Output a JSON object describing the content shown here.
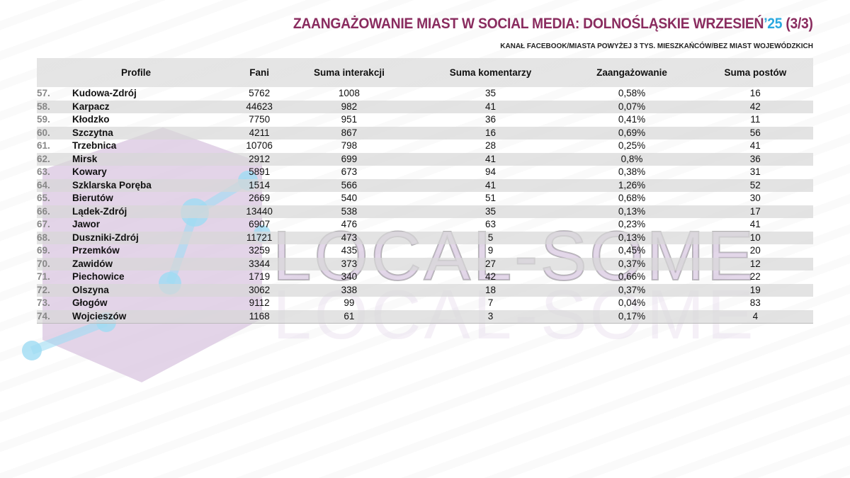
{
  "header": {
    "title_main": "ZAANGAŻOWANIE MIAST W SOCIAL MEDIA: DOLNOŚLĄSKIE WRZESIEŃ",
    "title_year": "’25",
    "title_part": " (3/3)",
    "subtitle": "KANAŁ FACEBOOK/MIASTA POWYŻEJ  3 TYS. MIESZKAŃCÓW/BEZ MIAST WOJEWÓDZKICH"
  },
  "watermark": {
    "text": "LOCAL-SOME"
  },
  "colors": {
    "title": "#8a2c5f",
    "year_accent": "#2aa9e0",
    "watermark": "#cdb8d8"
  },
  "table": {
    "columns": [
      "Profile",
      "Fani",
      "Suma interakcji",
      "Suma komentarzy",
      "Zaangażowanie",
      "Suma postów"
    ],
    "rows": [
      {
        "rank": "57.",
        "name": "Kudowa-Zdrój",
        "fans": "5762",
        "interactions": "1008",
        "comments": "35",
        "engagement": "0,58%",
        "posts": "16"
      },
      {
        "rank": "58.",
        "name": "Karpacz",
        "fans": "44623",
        "interactions": "982",
        "comments": "41",
        "engagement": "0,07%",
        "posts": "42"
      },
      {
        "rank": "59.",
        "name": "Kłodzko",
        "fans": "7750",
        "interactions": "951",
        "comments": "36",
        "engagement": "0,41%",
        "posts": "11"
      },
      {
        "rank": "60.",
        "name": "Szczytna",
        "fans": "4211",
        "interactions": "867",
        "comments": "16",
        "engagement": "0,69%",
        "posts": "56"
      },
      {
        "rank": "61.",
        "name": "Trzebnica",
        "fans": "10706",
        "interactions": "798",
        "comments": "28",
        "engagement": "0,25%",
        "posts": "41"
      },
      {
        "rank": "62.",
        "name": "Mirsk",
        "fans": "2912",
        "interactions": "699",
        "comments": "41",
        "engagement": "0,8%",
        "posts": "36"
      },
      {
        "rank": "63.",
        "name": "Kowary",
        "fans": "5891",
        "interactions": "673",
        "comments": "94",
        "engagement": "0,38%",
        "posts": "31"
      },
      {
        "rank": "64.",
        "name": "Szklarska Poręba",
        "fans": "1514",
        "interactions": "566",
        "comments": "41",
        "engagement": "1,26%",
        "posts": "52"
      },
      {
        "rank": "65.",
        "name": "Bierutów",
        "fans": "2669",
        "interactions": "540",
        "comments": "51",
        "engagement": "0,68%",
        "posts": "30"
      },
      {
        "rank": "66.",
        "name": "Lądek-Zdrój",
        "fans": "13440",
        "interactions": "538",
        "comments": "35",
        "engagement": "0,13%",
        "posts": "17"
      },
      {
        "rank": "67.",
        "name": "Jawor",
        "fans": "6907",
        "interactions": "476",
        "comments": "63",
        "engagement": "0,23%",
        "posts": "41"
      },
      {
        "rank": "68.",
        "name": "Duszniki-Zdrój",
        "fans": "11721",
        "interactions": "473",
        "comments": "5",
        "engagement": "0,13%",
        "posts": "10"
      },
      {
        "rank": "69.",
        "name": "Przemków",
        "fans": "3259",
        "interactions": "435",
        "comments": "9",
        "engagement": "0,45%",
        "posts": "20"
      },
      {
        "rank": "70.",
        "name": "Zawidów",
        "fans": "3344",
        "interactions": "373",
        "comments": "27",
        "engagement": "0,37%",
        "posts": "12"
      },
      {
        "rank": "71.",
        "name": "Piechowice",
        "fans": "1719",
        "interactions": "340",
        "comments": "42",
        "engagement": "0,66%",
        "posts": "22"
      },
      {
        "rank": "72.",
        "name": "Olszyna",
        "fans": "3062",
        "interactions": "338",
        "comments": "18",
        "engagement": "0,37%",
        "posts": "19"
      },
      {
        "rank": "73.",
        "name": "Głogów",
        "fans": "9112",
        "interactions": "99",
        "comments": "7",
        "engagement": "0,04%",
        "posts": "83"
      },
      {
        "rank": "74.",
        "name": "Wojcieszów",
        "fans": "1168",
        "interactions": "61",
        "comments": "3",
        "engagement": "0,17%",
        "posts": "4"
      }
    ]
  }
}
